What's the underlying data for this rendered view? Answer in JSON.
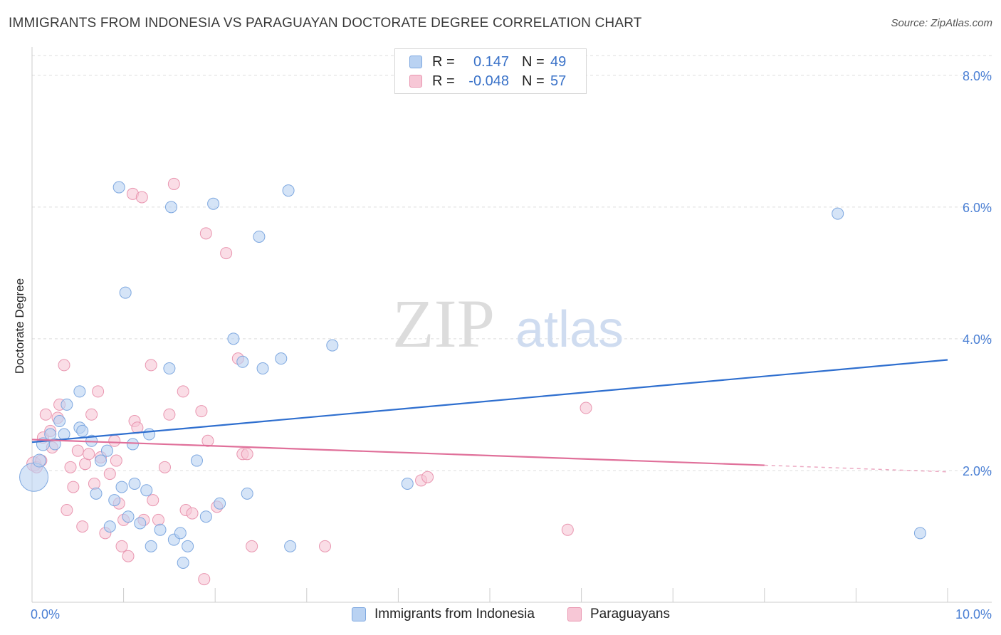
{
  "header": {
    "title": "IMMIGRANTS FROM INDONESIA VS PARAGUAYAN DOCTORATE DEGREE CORRELATION CHART",
    "source": "Source: ZipAtlas.com"
  },
  "legend": {
    "r_label": "R =",
    "n_label": "N =",
    "rows": [
      {
        "name": "Immigrants from Indonesia",
        "r": "0.147",
        "n": "49"
      },
      {
        "name": "Paraguayans",
        "r": "-0.048",
        "n": "57"
      }
    ]
  },
  "watermark": {
    "zip": "ZIP",
    "atlas": "atlas"
  },
  "chart_data": {
    "type": "scatter",
    "title": "IMMIGRANTS FROM INDONESIA VS PARAGUAYAN DOCTORATE DEGREE CORRELATION CHART",
    "xlabel": "",
    "ylabel": "Doctorate Degree",
    "xlim": [
      0,
      10
    ],
    "ylim": [
      0,
      8.3
    ],
    "x_tick_labels": [
      {
        "value": 0,
        "label": "0.0%"
      },
      {
        "value": 10,
        "label": "10.0%"
      }
    ],
    "y_tick_labels": [
      {
        "value": 2,
        "label": "2.0%"
      },
      {
        "value": 4,
        "label": "4.0%"
      },
      {
        "value": 6,
        "label": "6.0%"
      },
      {
        "value": 8,
        "label": "8.0%"
      }
    ],
    "grid": true,
    "colors": {
      "blue_fill": "#b9d2f2",
      "blue_stroke": "#7ea8e0",
      "blue_line": "#2f6fcf",
      "pink_fill": "#f7c7d6",
      "pink_stroke": "#e996b0",
      "pink_line": "#e0709a"
    },
    "series": [
      {
        "name": "Immigrants from Indonesia",
        "color": "blue",
        "points": [
          [
            0.02,
            1.9,
            20
          ],
          [
            0.08,
            2.15,
            9
          ],
          [
            0.12,
            2.4,
            9
          ],
          [
            0.2,
            2.55,
            8
          ],
          [
            0.25,
            2.4,
            8
          ],
          [
            0.3,
            2.75,
            8
          ],
          [
            0.35,
            2.55,
            8
          ],
          [
            0.38,
            3.0,
            8
          ],
          [
            0.52,
            3.2,
            8
          ],
          [
            0.52,
            2.65,
            8
          ],
          [
            0.55,
            2.6,
            8
          ],
          [
            0.65,
            2.45,
            8
          ],
          [
            0.7,
            1.65,
            8
          ],
          [
            0.75,
            2.15,
            8
          ],
          [
            0.82,
            2.3,
            8
          ],
          [
            0.85,
            1.15,
            8
          ],
          [
            0.9,
            1.55,
            8
          ],
          [
            0.95,
            6.3,
            8
          ],
          [
            0.98,
            1.75,
            8
          ],
          [
            1.02,
            4.7,
            8
          ],
          [
            1.05,
            1.3,
            8
          ],
          [
            1.1,
            2.4,
            8
          ],
          [
            1.12,
            1.8,
            8
          ],
          [
            1.18,
            1.2,
            8
          ],
          [
            1.25,
            1.7,
            8
          ],
          [
            1.28,
            2.55,
            8
          ],
          [
            1.3,
            0.85,
            8
          ],
          [
            1.4,
            1.1,
            8
          ],
          [
            1.5,
            3.55,
            8
          ],
          [
            1.52,
            6.0,
            8
          ],
          [
            1.55,
            0.95,
            8
          ],
          [
            1.62,
            1.05,
            8
          ],
          [
            1.65,
            0.6,
            8
          ],
          [
            1.7,
            0.85,
            8
          ],
          [
            1.8,
            2.15,
            8
          ],
          [
            1.9,
            1.3,
            8
          ],
          [
            1.98,
            6.05,
            8
          ],
          [
            2.05,
            1.5,
            8
          ],
          [
            2.2,
            4.0,
            8
          ],
          [
            2.3,
            3.65,
            8
          ],
          [
            2.35,
            1.65,
            8
          ],
          [
            2.48,
            5.55,
            8
          ],
          [
            2.52,
            3.55,
            8
          ],
          [
            2.72,
            3.7,
            8
          ],
          [
            2.8,
            6.25,
            8
          ],
          [
            2.82,
            0.85,
            8
          ],
          [
            3.28,
            3.9,
            8
          ],
          [
            4.1,
            1.8,
            8
          ],
          [
            8.8,
            5.9,
            8
          ],
          [
            9.7,
            1.05,
            8
          ]
        ],
        "trend": [
          [
            0,
            2.43
          ],
          [
            10,
            3.68
          ]
        ]
      },
      {
        "name": "Paraguayans",
        "color": "pink",
        "points": [
          [
            0.02,
            2.1,
            10
          ],
          [
            0.05,
            2.05,
            8
          ],
          [
            0.1,
            2.15,
            8
          ],
          [
            0.12,
            2.5,
            8
          ],
          [
            0.15,
            2.85,
            8
          ],
          [
            0.2,
            2.6,
            8
          ],
          [
            0.22,
            2.35,
            8
          ],
          [
            0.28,
            2.8,
            8
          ],
          [
            0.3,
            3.0,
            8
          ],
          [
            0.35,
            3.6,
            8
          ],
          [
            0.38,
            1.4,
            8
          ],
          [
            0.42,
            2.05,
            8
          ],
          [
            0.45,
            1.75,
            8
          ],
          [
            0.5,
            2.3,
            8
          ],
          [
            0.55,
            1.15,
            8
          ],
          [
            0.58,
            2.1,
            8
          ],
          [
            0.62,
            2.25,
            8
          ],
          [
            0.65,
            2.85,
            8
          ],
          [
            0.68,
            1.8,
            8
          ],
          [
            0.72,
            3.2,
            8
          ],
          [
            0.75,
            2.2,
            8
          ],
          [
            0.8,
            1.05,
            8
          ],
          [
            0.85,
            1.95,
            8
          ],
          [
            0.9,
            2.45,
            8
          ],
          [
            0.92,
            2.15,
            8
          ],
          [
            0.95,
            1.5,
            8
          ],
          [
            0.98,
            0.85,
            8
          ],
          [
            1.0,
            1.25,
            8
          ],
          [
            1.05,
            0.7,
            8
          ],
          [
            1.1,
            6.2,
            8
          ],
          [
            1.12,
            2.75,
            8
          ],
          [
            1.15,
            2.65,
            8
          ],
          [
            1.2,
            6.15,
            8
          ],
          [
            1.22,
            1.25,
            8
          ],
          [
            1.3,
            3.6,
            8
          ],
          [
            1.32,
            1.55,
            8
          ],
          [
            1.38,
            1.25,
            8
          ],
          [
            1.45,
            2.05,
            8
          ],
          [
            1.5,
            2.85,
            8
          ],
          [
            1.55,
            6.35,
            8
          ],
          [
            1.65,
            3.2,
            8
          ],
          [
            1.68,
            1.4,
            8
          ],
          [
            1.75,
            1.35,
            8
          ],
          [
            1.85,
            2.9,
            8
          ],
          [
            1.88,
            0.35,
            8
          ],
          [
            1.9,
            5.6,
            8
          ],
          [
            1.92,
            2.45,
            8
          ],
          [
            2.02,
            1.45,
            8
          ],
          [
            2.12,
            5.3,
            8
          ],
          [
            2.25,
            3.7,
            8
          ],
          [
            2.3,
            2.25,
            8
          ],
          [
            2.35,
            2.25,
            8
          ],
          [
            2.4,
            0.85,
            8
          ],
          [
            3.2,
            0.85,
            8
          ],
          [
            4.25,
            1.85,
            8
          ],
          [
            4.32,
            1.9,
            8
          ],
          [
            5.85,
            1.1,
            8
          ],
          [
            6.05,
            2.95,
            8
          ]
        ],
        "trend": [
          [
            0,
            2.47
          ],
          [
            8.0,
            2.08
          ]
        ],
        "trend_dashed": [
          [
            8.0,
            2.08
          ],
          [
            10,
            1.98
          ]
        ]
      }
    ]
  }
}
